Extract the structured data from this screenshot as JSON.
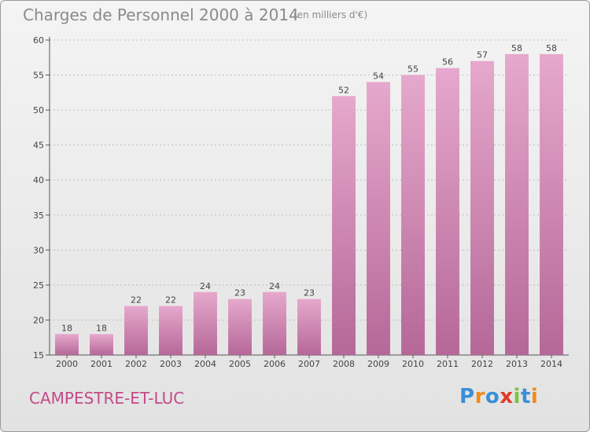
{
  "title": "Charges de Personnel 2000 à 2014",
  "unit": "(en milliers d'€)",
  "place": "CAMPESTRE-ET-LUC",
  "logo": "Proxiti",
  "colors": {
    "bar_top": "#e6a8cc",
    "bar_bottom": "#b56898",
    "place_text": "#c44a86",
    "grid": "#bdbdbd"
  },
  "chart_data": {
    "type": "bar",
    "title": "Charges de Personnel 2000 à 2014",
    "subtitle": "(en milliers d'€)",
    "categories": [
      "2000",
      "2001",
      "2002",
      "2003",
      "2004",
      "2005",
      "2006",
      "2007",
      "2008",
      "2009",
      "2010",
      "2011",
      "2012",
      "2013",
      "2014"
    ],
    "values": [
      18,
      18,
      22,
      22,
      24,
      23,
      24,
      23,
      52,
      54,
      55,
      56,
      57,
      58,
      58
    ],
    "ylim": [
      15,
      60
    ],
    "yticks": [
      15,
      20,
      25,
      30,
      35,
      40,
      45,
      50,
      55,
      60
    ],
    "grid": true,
    "xlabel": "",
    "ylabel": ""
  }
}
